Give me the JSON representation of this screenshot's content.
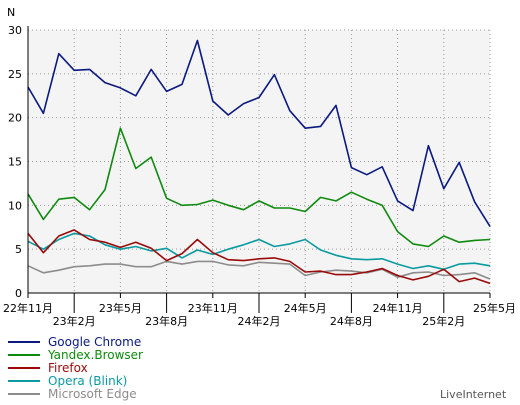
{
  "chart_data": {
    "type": "line",
    "ylabel": "N",
    "ylim": [
      0,
      30
    ],
    "yticks": [
      0,
      5,
      10,
      15,
      20,
      25,
      30
    ],
    "grid": true,
    "legend_position": "bottom-left",
    "credit": "LiveInternet",
    "x_tick_labels": [
      {
        "i": 0,
        "row": 0,
        "label": "22年11月"
      },
      {
        "i": 3,
        "row": 1,
        "label": "23年2月"
      },
      {
        "i": 6,
        "row": 0,
        "label": "23年5月"
      },
      {
        "i": 9,
        "row": 1,
        "label": "23年8月"
      },
      {
        "i": 12,
        "row": 0,
        "label": "23年11月"
      },
      {
        "i": 15,
        "row": 1,
        "label": "24年2月"
      },
      {
        "i": 18,
        "row": 0,
        "label": "24年5月"
      },
      {
        "i": 21,
        "row": 1,
        "label": "24年8月"
      },
      {
        "i": 24,
        "row": 0,
        "label": "24年11月"
      },
      {
        "i": 27,
        "row": 1,
        "label": "25年2月"
      },
      {
        "i": 30,
        "row": 0,
        "label": "25年5月"
      }
    ],
    "series": [
      {
        "name": "Google Chrome",
        "color": "#0a1a80",
        "values": [
          23.5,
          20.5,
          27.3,
          25.4,
          25.5,
          24.0,
          23.4,
          22.5,
          25.5,
          23.0,
          23.8,
          28.8,
          21.9,
          20.3,
          21.6,
          22.3,
          24.9,
          20.8,
          18.8,
          19.0,
          21.4,
          14.3,
          13.5,
          14.4,
          10.5,
          9.4,
          16.8,
          11.9,
          14.9,
          10.4,
          7.6
        ]
      },
      {
        "name": "Yandex.Browser",
        "color": "#0f8a0f",
        "values": [
          11.3,
          8.4,
          10.7,
          10.9,
          9.5,
          11.8,
          18.8,
          14.2,
          15.5,
          10.8,
          10.0,
          10.1,
          10.6,
          10.0,
          9.5,
          10.5,
          9.7,
          9.7,
          9.3,
          10.9,
          10.5,
          11.5,
          10.7,
          10.0,
          7.0,
          5.6,
          5.3,
          6.5,
          5.8,
          6.0,
          6.1
        ]
      },
      {
        "name": "Firefox",
        "color": "#9a0a0a",
        "values": [
          6.8,
          4.6,
          6.5,
          7.2,
          6.1,
          5.8,
          5.2,
          5.8,
          5.1,
          3.7,
          4.5,
          6.1,
          4.6,
          3.8,
          3.7,
          3.9,
          4.0,
          3.6,
          2.4,
          2.5,
          2.1,
          2.1,
          2.4,
          2.8,
          2.0,
          1.5,
          1.9,
          2.7,
          1.3,
          1.7,
          1.1
        ]
      },
      {
        "name": "Opera (Blink)",
        "color": "#0a9aa0",
        "values": [
          5.9,
          5.0,
          6.1,
          6.8,
          6.5,
          5.5,
          5.0,
          5.3,
          4.8,
          5.1,
          4.0,
          4.9,
          4.4,
          5.0,
          5.5,
          6.1,
          5.3,
          5.6,
          6.1,
          4.9,
          4.3,
          3.9,
          3.8,
          3.9,
          3.3,
          2.8,
          3.1,
          2.7,
          3.3,
          3.4,
          3.1
        ]
      },
      {
        "name": "Microsoft Edge",
        "color": "#8c8c8c",
        "values": [
          3.1,
          2.3,
          2.6,
          3.0,
          3.1,
          3.3,
          3.3,
          3.0,
          3.0,
          3.6,
          3.3,
          3.6,
          3.6,
          3.2,
          3.1,
          3.5,
          3.4,
          3.3,
          2.0,
          2.4,
          2.6,
          2.5,
          2.3,
          2.7,
          1.8,
          2.3,
          2.4,
          2.0,
          2.1,
          2.3,
          1.6
        ]
      }
    ]
  }
}
